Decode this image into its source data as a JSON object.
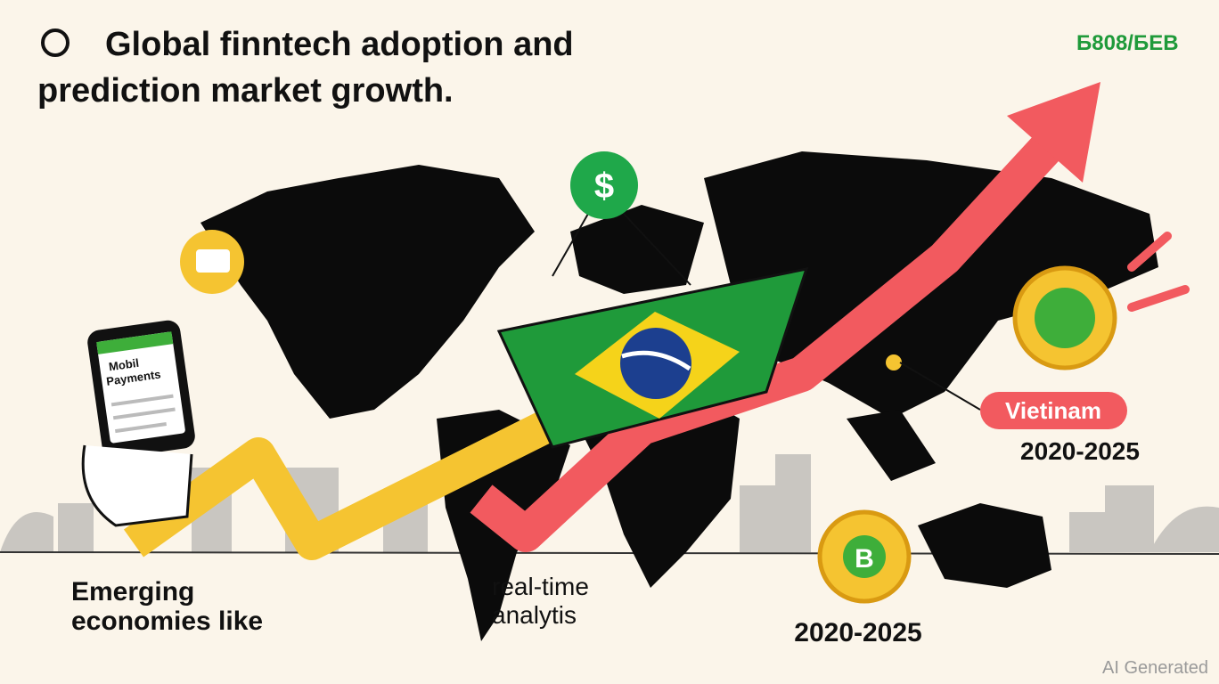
{
  "header": {
    "title_lines": [
      "Global finntech adoption and",
      "prediction market growth."
    ],
    "badge": "Б808/БЕВ"
  },
  "phone": {
    "lines": [
      "Mobil",
      "Payments"
    ]
  },
  "icons": {
    "dollar": "$",
    "coin_b": "B"
  },
  "labels": {
    "vietnam": "Vietinam",
    "vietnam_years": "2020-2025",
    "bottom_years": "2020-2025",
    "emerging": [
      "Emerging",
      "economies like"
    ],
    "analytics": [
      "real-time",
      "analytis"
    ]
  },
  "watermark": "AI Generated"
}
